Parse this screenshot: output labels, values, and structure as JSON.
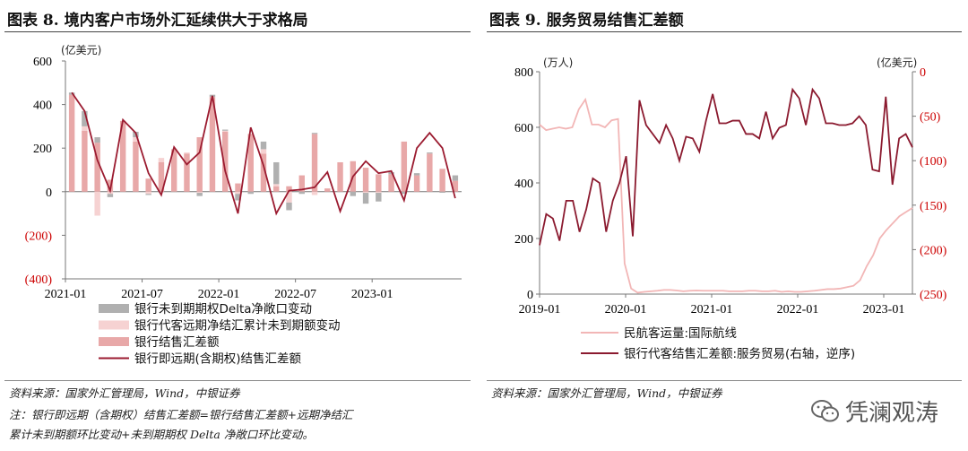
{
  "left_panel": {
    "title": "图表 8.  境内客户市场外汇延续供大于求格局",
    "source": "资料来源：国家外汇管理局，Wind，中银证券",
    "note_line1": "注：银行即远期（含期权）结售汇差额=银行结售汇差额+远期净结汇",
    "note_line2": "累计未到期额环比变动+未到期期权 Delta 净敞口环比变动。"
  },
  "right_panel": {
    "title": "图表 9.  服务贸易结售汇差额",
    "source": "资料来源：国家外汇管理局，Wind，中银证券"
  },
  "brand": {
    "text": "凭澜观涛",
    "icon": "wechat-icon"
  },
  "chart_data": [
    {
      "type": "bar",
      "unit_label": "(亿美元)",
      "ylim": [
        -400,
        600
      ],
      "y_ticks": [
        "600",
        "400",
        "200",
        "0",
        "(200)",
        "(400)"
      ],
      "y_tick_values": [
        600,
        400,
        200,
        0,
        -200,
        -400
      ],
      "x_tick_labels": [
        "2021-01",
        "2021-07",
        "2022-01",
        "2022-07",
        "2023-01"
      ],
      "x_tick_index": [
        0,
        6,
        12,
        18,
        24
      ],
      "legend_placement": "bottom",
      "colors": {
        "delta": "#b0b0b0",
        "forward": "#f6d2d2",
        "spot": "#e8a8a8",
        "line": "#9b1b30",
        "neg_tick": "#cc0000"
      },
      "series": [
        {
          "name": "银行未到期期权Delta净敞口变动",
          "kind": "bar",
          "values": [
            10,
            70,
            25,
            -15,
            0,
            25,
            -5,
            0,
            -2,
            0,
            -15,
            10,
            5,
            -30,
            -10,
            35,
            100,
            -35,
            -10,
            5,
            0,
            0,
            -20,
            -50,
            -40,
            10,
            -10,
            10,
            5,
            -5,
            25
          ]
        },
        {
          "name": "银行代客远期净结汇累计未到期额变动",
          "kind": "bar",
          "values": [
            0,
            20,
            -110,
            -10,
            0,
            20,
            -10,
            20,
            0,
            5,
            -5,
            0,
            5,
            -10,
            0,
            20,
            10,
            -50,
            0,
            -15,
            0,
            0,
            0,
            -5,
            -5,
            0,
            0,
            0,
            0,
            0,
            0
          ]
        },
        {
          "name": "银行结售汇差额",
          "kind": "bar",
          "values": [
            445,
            280,
            225,
            55,
            325,
            230,
            60,
            135,
            195,
            175,
            250,
            435,
            275,
            38,
            265,
            175,
            25,
            25,
            75,
            265,
            15,
            135,
            140,
            110,
            80,
            80,
            230,
            75,
            175,
            105,
            50
          ]
        },
        {
          "name": "银行即远期(含期权)结售汇差额",
          "kind": "line",
          "values": [
            455,
            370,
            145,
            5,
            330,
            270,
            85,
            -15,
            205,
            125,
            180,
            440,
            95,
            -100,
            295,
            120,
            -100,
            5,
            10,
            20,
            90,
            -90,
            70,
            140,
            85,
            95,
            -40,
            200,
            270,
            200,
            -30
          ]
        }
      ]
    },
    {
      "type": "line",
      "left_unit_label": "(万人)",
      "right_unit_label": "(亿美元)",
      "ylim_left": [
        0,
        800
      ],
      "ylim_right": [
        250,
        0
      ],
      "right_axis_reversed": true,
      "left_ticks": [
        "800",
        "600",
        "400",
        "200",
        "0"
      ],
      "left_tick_values": [
        800,
        600,
        400,
        200,
        0
      ],
      "right_ticks": [
        "(250)",
        "(200)",
        "(150)",
        "(100)",
        "(50)",
        "0"
      ],
      "right_tick_values": [
        250,
        200,
        150,
        100,
        50,
        0
      ],
      "x_tick_labels": [
        "2019-01",
        "2020-01",
        "2021-01",
        "2022-01",
        "2023-01"
      ],
      "x_tick_index": [
        0,
        12,
        24,
        36,
        48
      ],
      "legend_placement": "bottom",
      "colors": {
        "passenger": "#f2b6b6",
        "services": "#8b1a2f",
        "right_axis": "#cc0000"
      },
      "series": [
        {
          "name": "民航客运量:国际航线",
          "axis": "left",
          "values": [
            610,
            590,
            595,
            600,
            595,
            600,
            665,
            700,
            610,
            610,
            600,
            625,
            630,
            110,
            20,
            5,
            8,
            10,
            12,
            15,
            15,
            13,
            10,
            12,
            13,
            12,
            12,
            12,
            12,
            10,
            10,
            10,
            12,
            12,
            10,
            10,
            12,
            8,
            10,
            8,
            8,
            10,
            12,
            15,
            18,
            18,
            20,
            25,
            30,
            50,
            100,
            140,
            200,
            230,
            255,
            280,
            295,
            310
          ]
        },
        {
          "name": "银行代客结售汇差额:服务贸易(右轴，逆序)",
          "axis": "right",
          "alt_label": "银行代客结售汇差额:服务贸易(右轴, 逆序)",
          "values": [
            195,
            160,
            165,
            190,
            145,
            145,
            180,
            155,
            120,
            125,
            180,
            145,
            125,
            95,
            185,
            32,
            60,
            70,
            80,
            60,
            75,
            100,
            73,
            75,
            90,
            55,
            25,
            58,
            58,
            55,
            55,
            70,
            70,
            75,
            45,
            75,
            63,
            60,
            20,
            30,
            60,
            20,
            30,
            58,
            58,
            60,
            60,
            58,
            50,
            60,
            110,
            112,
            28,
            127,
            75,
            70,
            85
          ]
        }
      ]
    }
  ]
}
